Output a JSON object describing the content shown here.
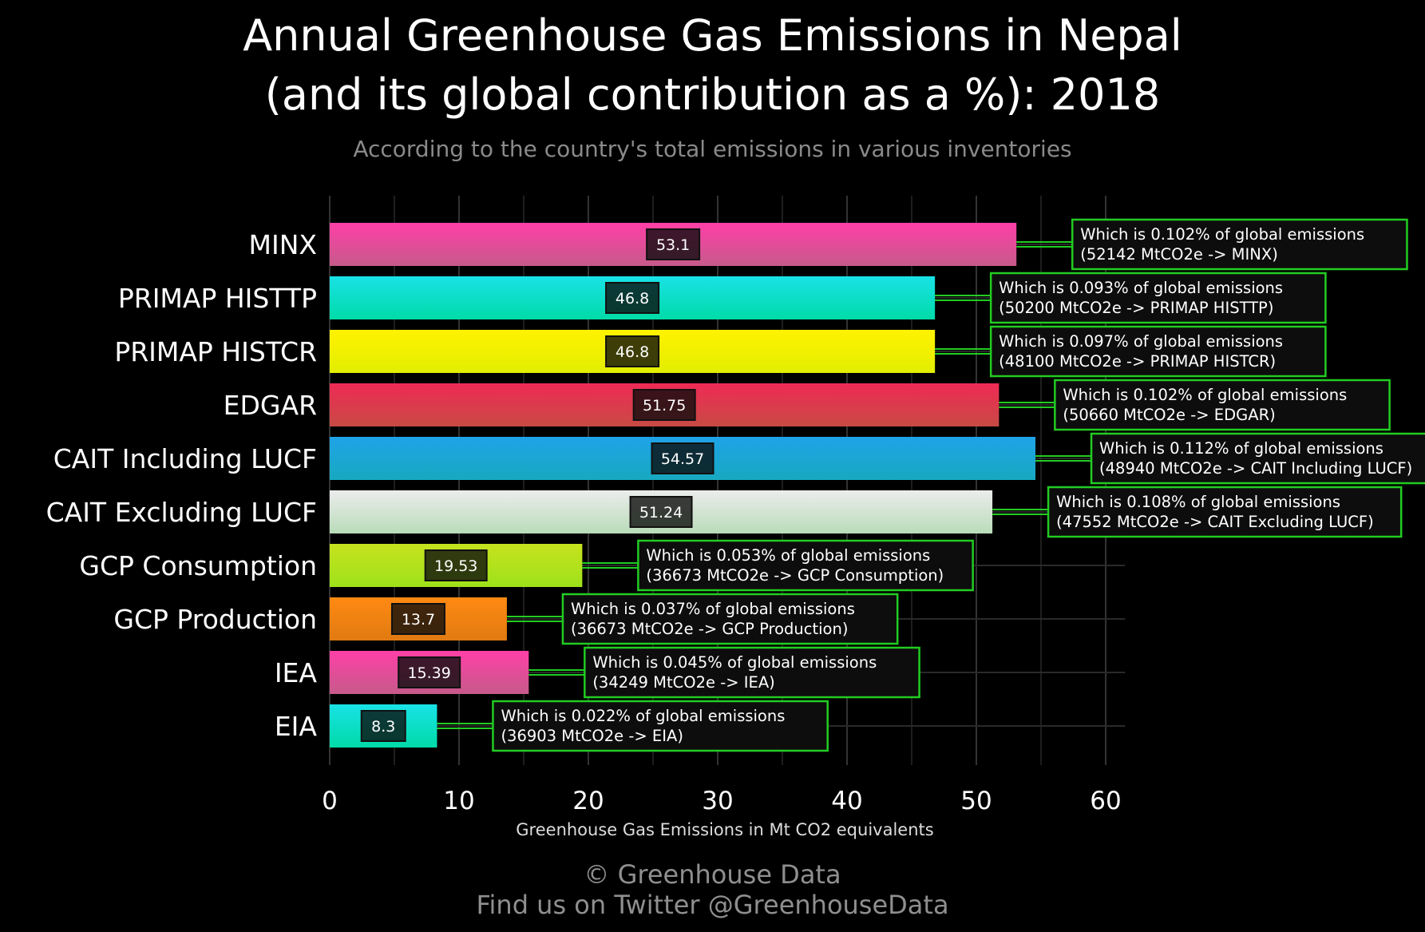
{
  "title_line1": "Annual Greenhouse Gas Emissions in Nepal",
  "title_line2": "(and its global contribution as a %): 2018",
  "subtitle": "According to the country's total emissions in various inventories",
  "footer_line1": "© Greenhouse Data",
  "footer_line2": "Find us on Twitter @GreenhouseData",
  "chart_data": {
    "type": "bar",
    "orientation": "horizontal",
    "xlabel": "Greenhouse Gas Emissions in Mt CO2 equivalents",
    "xlim": [
      0,
      61.5
    ],
    "xticks": [
      0,
      10,
      20,
      30,
      40,
      50,
      60
    ],
    "grid": true,
    "categories": [
      "MINX",
      "PRIMAP HISTTP",
      "PRIMAP HISTCR",
      "EDGAR",
      "CAIT Including LUCF",
      "CAIT Excluding LUCF",
      "GCP Consumption",
      "GCP Production",
      "IEA",
      "EIA"
    ],
    "values": [
      53.1,
      46.8,
      46.8,
      51.75,
      54.57,
      51.24,
      19.53,
      13.7,
      15.39,
      8.3
    ],
    "value_labels": [
      "53.1",
      "46.8",
      "46.8",
      "51.75",
      "54.57",
      "51.24",
      "19.53",
      "13.7",
      "15.39",
      "8.3"
    ],
    "annotations_line1": [
      "Which is 0.102% of global emissions",
      "Which is 0.093% of global emissions",
      "Which is 0.097% of global emissions",
      "Which is 0.102% of global emissions",
      "Which is 0.112% of global emissions",
      "Which is 0.108% of global emissions",
      "Which is 0.053% of global emissions",
      "Which is 0.037% of global emissions",
      "Which is 0.045% of global emissions",
      "Which is 0.022% of global emissions"
    ],
    "annotations_line2": [
      "(52142 MtCO2e -> MINX)",
      "(50200 MtCO2e -> PRIMAP HISTTP)",
      "(48100 MtCO2e -> PRIMAP HISTCR)",
      "(50660 MtCO2e -> EDGAR)",
      "(48940 MtCO2e -> CAIT Including LUCF)",
      "(47552 MtCO2e -> CAIT Excluding LUCF)",
      "(36673 MtCO2e -> GCP Consumption)",
      "(36673 MtCO2e -> GCP Production)",
      "(34249 MtCO2e -> IEA)",
      "(36903 MtCO2e -> EIA)"
    ],
    "colors": [
      [
        "#ff3fa8",
        "#c65a8a"
      ],
      [
        "#19e2e6",
        "#00dba8"
      ],
      [
        "#fff200",
        "#e2ee00"
      ],
      [
        "#ef2a55",
        "#c84a44"
      ],
      [
        "#1fa3e8",
        "#17a9c0"
      ],
      [
        "#ececec",
        "#b9dcb9"
      ],
      [
        "#c6e21e",
        "#9ee21a"
      ],
      [
        "#ff8a12",
        "#e07a12"
      ],
      [
        "#ff3fa8",
        "#c65a8a"
      ],
      [
        "#19e2e6",
        "#00dba8"
      ]
    ],
    "annotation_border_color": "#22cc22",
    "connector_color": "#22cc22"
  }
}
